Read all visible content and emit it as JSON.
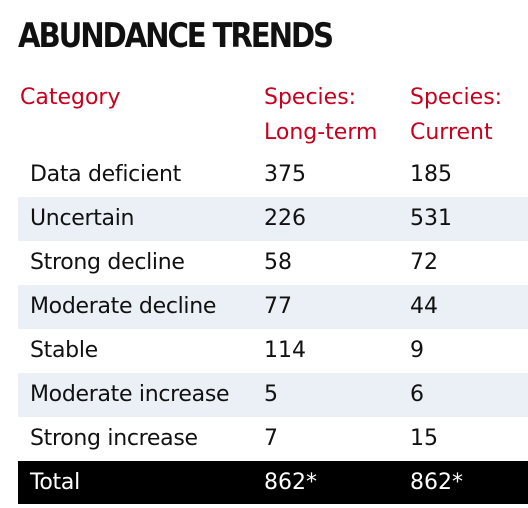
{
  "title": "ABUNDANCE TRENDS",
  "chart_data": {
    "type": "table",
    "title": "ABUNDANCE TRENDS",
    "columns": [
      "Category",
      "Species: Long-term",
      "Species: Current"
    ],
    "header_lines": [
      [
        "Category"
      ],
      [
        "Species:",
        "Long-term"
      ],
      [
        "Species:",
        "Current"
      ]
    ],
    "rows": [
      {
        "category": "Data deficient",
        "long_term": "375",
        "current": "185"
      },
      {
        "category": "Uncertain",
        "long_term": "226",
        "current": "531"
      },
      {
        "category": "Strong decline",
        "long_term": "58",
        "current": "72"
      },
      {
        "category": "Moderate decline",
        "long_term": "77",
        "current": "44"
      },
      {
        "category": "Stable",
        "long_term": "114",
        "current": "9"
      },
      {
        "category": "Moderate increase",
        "long_term": "5",
        "current": "6"
      },
      {
        "category": "Strong increase",
        "long_term": "7",
        "current": "15"
      }
    ],
    "total": {
      "category": "Total",
      "long_term": "862*",
      "current": "862*"
    }
  },
  "colors": {
    "header_text": "#c8001e",
    "stripe": "#eaf0f6",
    "total_background": "#000000",
    "total_text": "#ffffff",
    "text": "#111111"
  }
}
